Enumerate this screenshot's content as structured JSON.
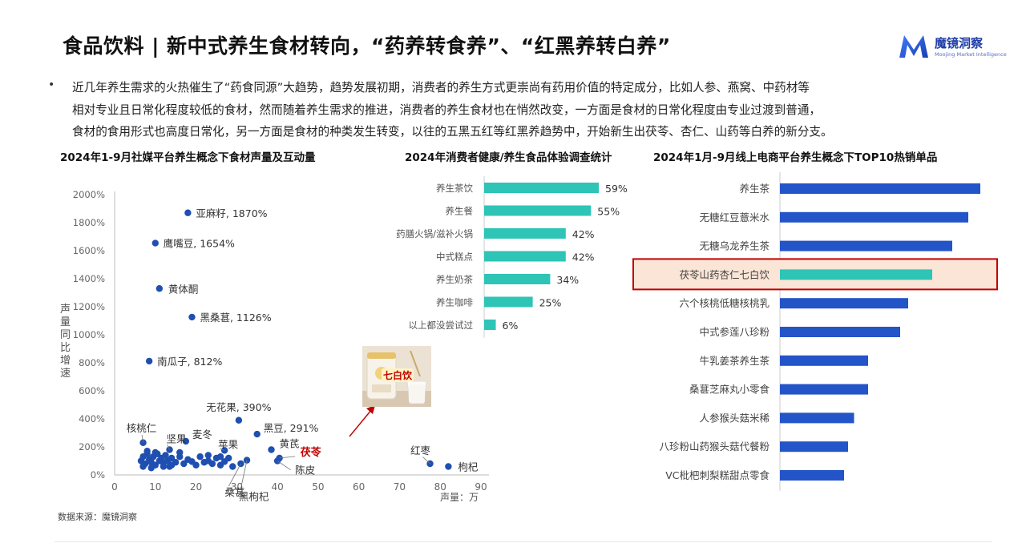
{
  "header": {
    "title": "食品饮料 | 新中式养生食材转向，“药养转食养”、“红黑养转白养”",
    "logo_name": "魔镜洞察",
    "logo_sub": "Moojing Market Intelligence",
    "brand_color": "#2a5bd7"
  },
  "intro": {
    "lines": [
      "近几年养生需求的火热催生了“药食同源”大趋势，趋势发展初期，消费者的养生方式更崇尚有药用价值的特定成分，比如人参、燕窝、中药材等",
      "相对专业且日常化程度较低的食材，然而随着养生需求的推进，消费者的养生食材也在悄然改变，一方面是食材的日常化程度由专业过渡到普通，",
      "食材的食用形式也高度日常化，另一方面是食材的种类发生转变，以往的五黑五红等红黑养趋势中，开始新生出茯苓、杏仁、山药等白养的新分支。"
    ]
  },
  "source": "数据来源：魔镜洞察",
  "chart_data": [
    {
      "type": "scatter",
      "title": "2024年1-9月社媒平台养生概念下食材声量及互动量",
      "ylabel": "声量同比增速",
      "xlabel": "声量：万",
      "xlim": [
        0,
        90
      ],
      "ylim": [
        0,
        2000
      ],
      "x_ticks": [
        "0",
        "10",
        "20",
        "30",
        "40",
        "50",
        "60",
        "70",
        "80",
        "90"
      ],
      "y_ticks": [
        "0%",
        "200%",
        "400%",
        "600%",
        "800%",
        "1000%",
        "1200%",
        "1400%",
        "1600%",
        "1800%",
        "2000%"
      ],
      "color": "#1f4fb0",
      "highlight_color": "#c00000",
      "labeled_points": [
        {
          "label": "亚麻籽, 1870%",
          "x": 18,
          "y": 1870
        },
        {
          "label": "鹰嘴豆, 1654%",
          "x": 10,
          "y": 1654
        },
        {
          "label": "黄体酮",
          "x": 11,
          "y": 1330
        },
        {
          "label": "黑桑葚, 1126%",
          "x": 19,
          "y": 1126
        },
        {
          "label": "南瓜子, 812%",
          "x": 8.5,
          "y": 812
        },
        {
          "label": "无花果, 390%",
          "x": 30.5,
          "y": 390
        },
        {
          "label": "黑豆, 291%",
          "x": 35,
          "y": 291
        },
        {
          "label": "核桃仁",
          "x": 7,
          "y": 230
        },
        {
          "label": "麦冬",
          "x": 17.5,
          "y": 240
        },
        {
          "label": "坚果",
          "x": 13.5,
          "y": 180
        },
        {
          "label": "苹果",
          "x": 27,
          "y": 175
        },
        {
          "label": "黄芪",
          "x": 38.5,
          "y": 180
        },
        {
          "label": "茯苓",
          "x": 40.5,
          "y": 120
        },
        {
          "label": "陈皮",
          "x": 40,
          "y": 100
        },
        {
          "label": "桑葚",
          "x": 31,
          "y": 80
        },
        {
          "label": "黑枸杞",
          "x": 32.5,
          "y": 105
        },
        {
          "label": "红枣",
          "x": 77.5,
          "y": 80
        },
        {
          "label": "枸杞",
          "x": 82,
          "y": 60
        }
      ],
      "cluster_points": [
        [
          6.5,
          100
        ],
        [
          7,
          130
        ],
        [
          7.5,
          80
        ],
        [
          8,
          150
        ],
        [
          8.5,
          110
        ],
        [
          9,
          90
        ],
        [
          9.5,
          130
        ],
        [
          10,
          70
        ],
        [
          10.5,
          150
        ],
        [
          11,
          100
        ],
        [
          11.5,
          120
        ],
        [
          12,
          85
        ],
        [
          12.5,
          140
        ],
        [
          13,
          100
        ],
        [
          13.5,
          60
        ],
        [
          14,
          120
        ],
        [
          15,
          90
        ],
        [
          16,
          130
        ],
        [
          17,
          80
        ],
        [
          18,
          110
        ],
        [
          19,
          95
        ],
        [
          20,
          70
        ],
        [
          21,
          130
        ],
        [
          22,
          90
        ],
        [
          23,
          100
        ],
        [
          24,
          80
        ],
        [
          25,
          120
        ],
        [
          26,
          70
        ],
        [
          27,
          95
        ],
        [
          28,
          120
        ],
        [
          29,
          60
        ],
        [
          7,
          60
        ],
        [
          8,
          170
        ],
        [
          9,
          50
        ],
        [
          10,
          160
        ],
        [
          12,
          60
        ],
        [
          14,
          70
        ],
        [
          16,
          160
        ],
        [
          23,
          140
        ],
        [
          26,
          130
        ]
      ],
      "annotation": {
        "label": "七白饮"
      }
    },
    {
      "type": "bar",
      "orientation": "horizontal",
      "title": "2024年消费者健康/养生食品体验调查统计",
      "categories": [
        "养生茶饮",
        "养生餐",
        "药膳火锅/滋补火锅",
        "中式糕点",
        "养生奶茶",
        "养生咖啡",
        "以上都没尝试过"
      ],
      "values": [
        59,
        55,
        42,
        42,
        34,
        25,
        6
      ],
      "value_labels": [
        "59%",
        "55%",
        "42%",
        "42%",
        "34%",
        "25%",
        "6%"
      ],
      "unit": "%",
      "color": "#2ec4b6"
    },
    {
      "type": "bar",
      "orientation": "horizontal",
      "title": "2024年1月-9月线上电商平台养生概念下TOP10热销单品",
      "categories": [
        "养生茶",
        "无糖红豆薏米水",
        "无糖乌龙养生茶",
        "茯苓山药杏仁七白饮",
        "六个核桃低糖核桃乳",
        "中式参莲八珍粉",
        "牛乳姜茶养生茶",
        "桑葚芝麻丸小零食",
        "人参猴头菇米稀",
        "八珍粉山药猴头菇代餐粉",
        "VC枇杷刺梨糕甜点零食"
      ],
      "values": [
        100,
        94,
        86,
        76,
        64,
        60,
        44,
        44,
        37,
        34,
        32
      ],
      "highlight_index": 3,
      "color": "#2354c8",
      "highlight_color": "#2ec4b6",
      "highlight_fill": "#fbe5d6",
      "highlight_border": "#c00000"
    }
  ]
}
